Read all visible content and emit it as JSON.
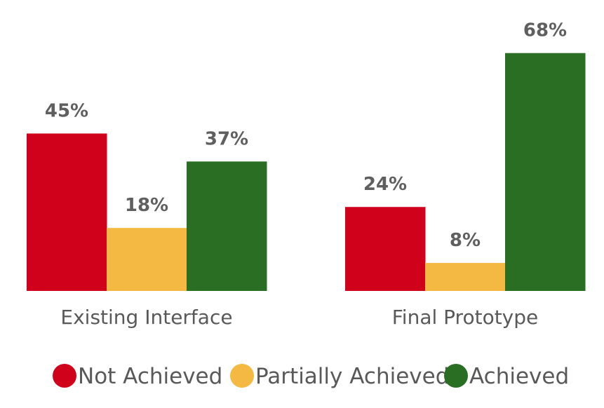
{
  "chart_data": {
    "type": "bar",
    "categories": [
      "Existing Interface",
      "Final Prototype"
    ],
    "series": [
      {
        "name": "Not Achieved",
        "values": [
          45,
          24
        ],
        "labels": [
          "45%",
          "24%"
        ],
        "color": "#d0021b"
      },
      {
        "name": "Partially Achieved",
        "values": [
          18,
          8
        ],
        "labels": [
          "18%",
          "8%"
        ],
        "color": "#f4b942"
      },
      {
        "name": "Achieved",
        "values": [
          37,
          68
        ],
        "labels": [
          "37%",
          "68%"
        ],
        "color": "#2a6e23"
      }
    ],
    "ylim": [
      0,
      100
    ],
    "grid": false,
    "legend_position": "bottom"
  }
}
